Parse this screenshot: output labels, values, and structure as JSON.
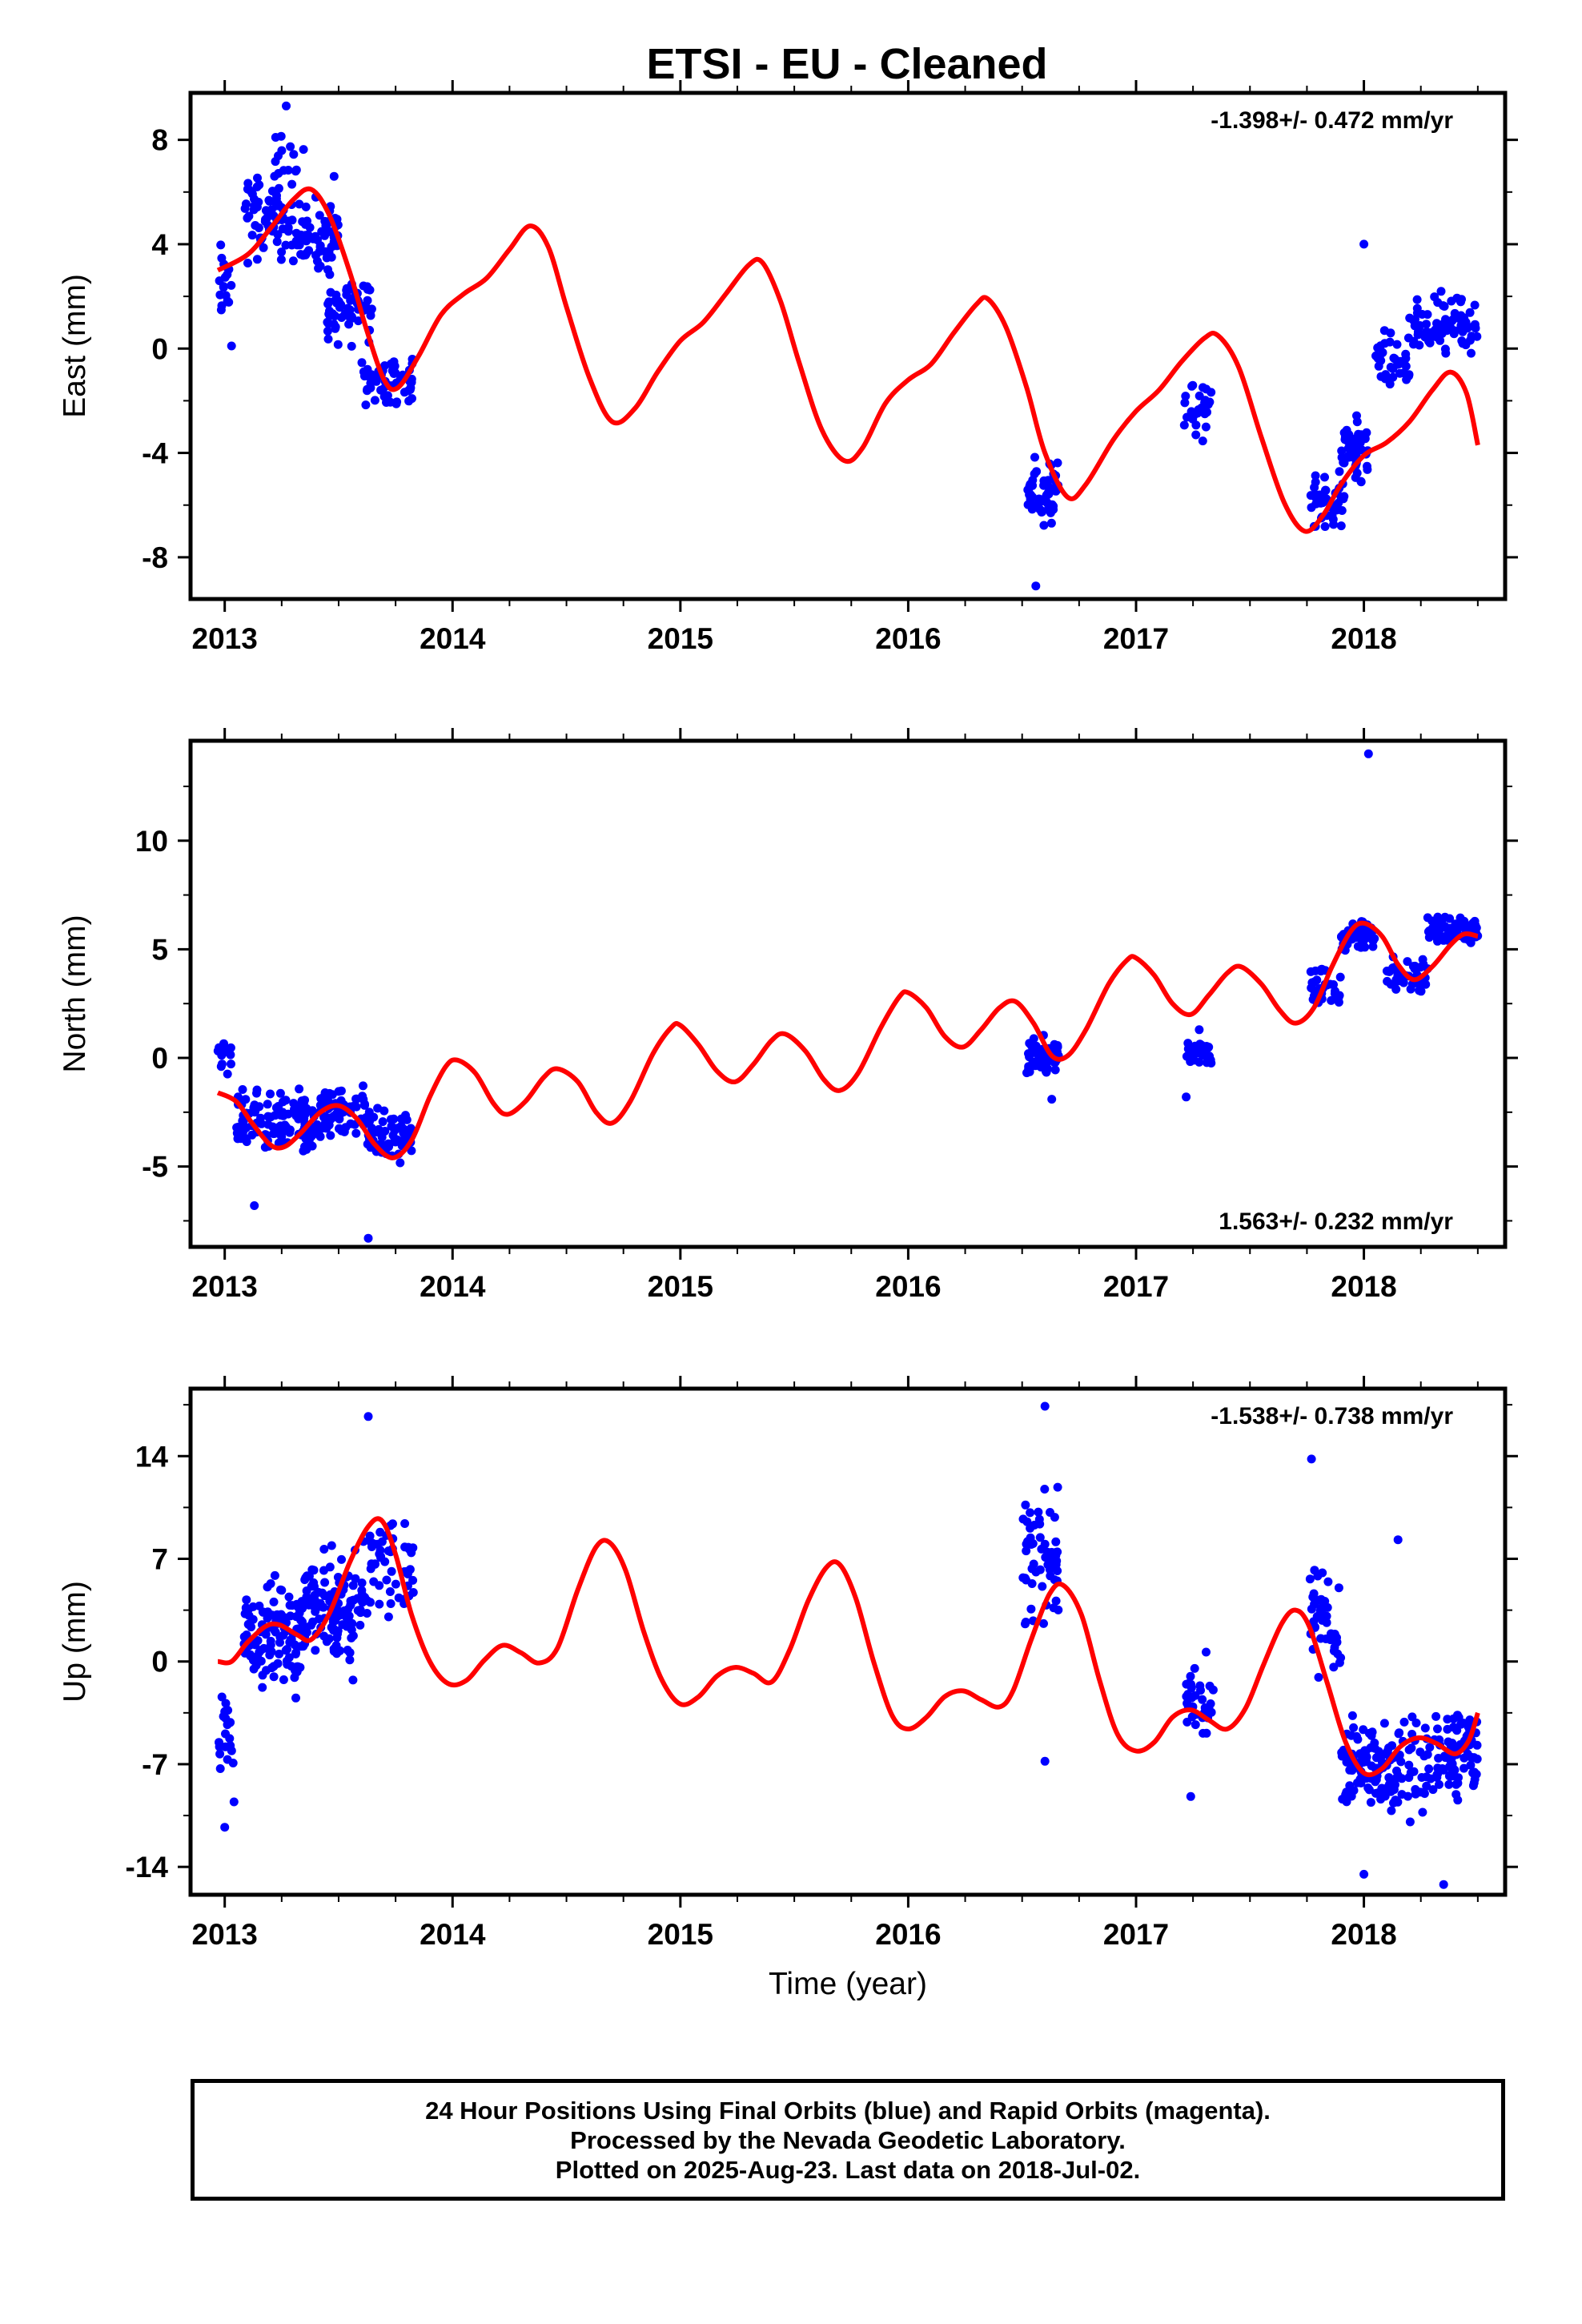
{
  "title": "ETSI  - EU - Cleaned",
  "footer": {
    "line1": "24 Hour Positions Using Final Orbits (blue) and Rapid Orbits (magenta).",
    "line2": "Processed by the Nevada Geodetic Laboratory.",
    "line3": "Plotted on 2025-Aug-23. Last data on 2018-Jul-02."
  },
  "colors": {
    "points": "#0000ff",
    "model": "#ff0000",
    "frame": "#000000"
  },
  "chart_data": [
    {
      "type": "scatter",
      "ylabel": "East (mm)",
      "xlabel": "",
      "xlim": [
        2012.85,
        2018.62
      ],
      "ylim": [
        -9.6,
        9.8
      ],
      "xticks": [
        "2013",
        "2014",
        "2015",
        "2016",
        "2017",
        "2018"
      ],
      "yticks": [
        "8",
        "4",
        "0",
        "-4",
        "-8"
      ],
      "ytick_values": [
        8,
        4,
        0,
        -4,
        -8
      ],
      "rate": "-1.398+/- 0.472 mm/yr",
      "rate_position": "top-right",
      "model_curve": [
        [
          2012.97,
          3.0
        ],
        [
          2013.1,
          3.6
        ],
        [
          2013.2,
          4.6
        ],
        [
          2013.3,
          5.7
        ],
        [
          2013.38,
          6.1
        ],
        [
          2013.46,
          5.1
        ],
        [
          2013.55,
          2.9
        ],
        [
          2013.62,
          0.8
        ],
        [
          2013.7,
          -1.2
        ],
        [
          2013.76,
          -1.5
        ],
        [
          2013.85,
          -0.3
        ],
        [
          2013.95,
          1.3
        ],
        [
          2014.05,
          2.1
        ],
        [
          2014.15,
          2.7
        ],
        [
          2014.25,
          3.8
        ],
        [
          2014.34,
          4.7
        ],
        [
          2014.42,
          3.9
        ],
        [
          2014.5,
          1.6
        ],
        [
          2014.6,
          -1.1
        ],
        [
          2014.7,
          -2.8
        ],
        [
          2014.8,
          -2.3
        ],
        [
          2014.9,
          -0.9
        ],
        [
          2015.0,
          0.3
        ],
        [
          2015.1,
          1.0
        ],
        [
          2015.2,
          2.1
        ],
        [
          2015.3,
          3.2
        ],
        [
          2015.36,
          3.3
        ],
        [
          2015.44,
          1.8
        ],
        [
          2015.52,
          -0.5
        ],
        [
          2015.62,
          -3.1
        ],
        [
          2015.72,
          -4.3
        ],
        [
          2015.8,
          -3.8
        ],
        [
          2015.9,
          -2.1
        ],
        [
          2016.0,
          -1.2
        ],
        [
          2016.1,
          -0.6
        ],
        [
          2016.2,
          0.6
        ],
        [
          2016.3,
          1.7
        ],
        [
          2016.35,
          1.9
        ],
        [
          2016.43,
          0.8
        ],
        [
          2016.52,
          -1.5
        ],
        [
          2016.6,
          -4.0
        ],
        [
          2016.7,
          -5.7
        ],
        [
          2016.78,
          -5.2
        ],
        [
          2016.9,
          -3.5
        ],
        [
          2017.0,
          -2.4
        ],
        [
          2017.1,
          -1.6
        ],
        [
          2017.2,
          -0.5
        ],
        [
          2017.3,
          0.4
        ],
        [
          2017.36,
          0.5
        ],
        [
          2017.45,
          -0.7
        ],
        [
          2017.55,
          -3.4
        ],
        [
          2017.65,
          -5.9
        ],
        [
          2017.74,
          -7.0
        ],
        [
          2017.82,
          -6.4
        ],
        [
          2017.9,
          -5.2
        ],
        [
          2018.0,
          -4.1
        ],
        [
          2018.1,
          -3.6
        ],
        [
          2018.2,
          -2.8
        ],
        [
          2018.3,
          -1.6
        ],
        [
          2018.38,
          -0.9
        ],
        [
          2018.45,
          -1.7
        ],
        [
          2018.5,
          -3.7
        ]
      ],
      "point_clusters": [
        {
          "x_from": 2012.97,
          "x_to": 2013.03,
          "y_center": 2.5,
          "y_spread": 2.2,
          "count": 18
        },
        {
          "x_from": 2013.08,
          "x_to": 2013.3,
          "y_center": 5.0,
          "y_spread": 2.3,
          "count": 70
        },
        {
          "x_from": 2013.22,
          "x_to": 2013.36,
          "y_center": 7.6,
          "y_spread": 1.2,
          "count": 12
        },
        {
          "x_from": 2013.3,
          "x_to": 2013.5,
          "y_center": 4.2,
          "y_spread": 2.0,
          "count": 65
        },
        {
          "x_from": 2013.45,
          "x_to": 2013.65,
          "y_center": 1.6,
          "y_spread": 1.8,
          "count": 60
        },
        {
          "x_from": 2013.6,
          "x_to": 2013.83,
          "y_center": -1.3,
          "y_spread": 1.4,
          "count": 60
        },
        {
          "x_from": 2016.52,
          "x_to": 2016.66,
          "y_center": -5.4,
          "y_spread": 1.6,
          "count": 55
        },
        {
          "x_from": 2017.2,
          "x_to": 2017.33,
          "y_center": -2.4,
          "y_spread": 1.5,
          "count": 30
        },
        {
          "x_from": 2017.76,
          "x_to": 2017.92,
          "y_center": -5.8,
          "y_spread": 1.4,
          "count": 45
        },
        {
          "x_from": 2017.9,
          "x_to": 2018.02,
          "y_center": -3.9,
          "y_spread": 1.7,
          "count": 45
        },
        {
          "x_from": 2018.05,
          "x_to": 2018.2,
          "y_center": -0.5,
          "y_spread": 1.6,
          "count": 35
        },
        {
          "x_from": 2018.2,
          "x_to": 2018.5,
          "y_center": 0.9,
          "y_spread": 1.5,
          "count": 80
        }
      ],
      "points": [
        [
          2013.03,
          0.1
        ],
        [
          2016.56,
          -9.1
        ],
        [
          2018.0,
          4.0
        ],
        [
          2013.27,
          9.3
        ],
        [
          2013.48,
          6.6
        ]
      ]
    },
    {
      "type": "scatter",
      "ylabel": "North (mm)",
      "xlabel": "",
      "xlim": [
        2012.85,
        2018.62
      ],
      "ylim": [
        -8.7,
        14.6
      ],
      "xticks": [
        "2013",
        "2014",
        "2015",
        "2016",
        "2017",
        "2018"
      ],
      "yticks": [
        "10",
        "5",
        "0",
        "-5"
      ],
      "ytick_values": [
        10,
        5,
        0,
        -5
      ],
      "rate": "1.563+/- 0.232 mm/yr",
      "rate_position": "bottom-right",
      "model_curve": [
        [
          2012.97,
          -1.6
        ],
        [
          2013.05,
          -2.0
        ],
        [
          2013.12,
          -3.0
        ],
        [
          2013.2,
          -4.0
        ],
        [
          2013.26,
          -4.1
        ],
        [
          2013.33,
          -3.5
        ],
        [
          2013.42,
          -2.5
        ],
        [
          2013.5,
          -2.2
        ],
        [
          2013.58,
          -2.8
        ],
        [
          2013.66,
          -4.0
        ],
        [
          2013.74,
          -4.6
        ],
        [
          2013.82,
          -3.8
        ],
        [
          2013.9,
          -1.8
        ],
        [
          2013.97,
          -0.4
        ],
        [
          2014.02,
          -0.1
        ],
        [
          2014.1,
          -0.7
        ],
        [
          2014.18,
          -2.1
        ],
        [
          2014.24,
          -2.6
        ],
        [
          2014.32,
          -2.0
        ],
        [
          2014.4,
          -0.9
        ],
        [
          2014.46,
          -0.5
        ],
        [
          2014.55,
          -1.1
        ],
        [
          2014.63,
          -2.5
        ],
        [
          2014.7,
          -3.0
        ],
        [
          2014.78,
          -2.0
        ],
        [
          2014.88,
          0.2
        ],
        [
          2014.96,
          1.4
        ],
        [
          2015.0,
          1.5
        ],
        [
          2015.08,
          0.6
        ],
        [
          2015.16,
          -0.6
        ],
        [
          2015.24,
          -1.1
        ],
        [
          2015.32,
          -0.3
        ],
        [
          2015.4,
          0.8
        ],
        [
          2015.46,
          1.1
        ],
        [
          2015.55,
          0.3
        ],
        [
          2015.63,
          -1.0
        ],
        [
          2015.7,
          -1.5
        ],
        [
          2015.78,
          -0.7
        ],
        [
          2015.88,
          1.4
        ],
        [
          2015.96,
          2.8
        ],
        [
          2016.0,
          3.0
        ],
        [
          2016.08,
          2.3
        ],
        [
          2016.16,
          1.0
        ],
        [
          2016.24,
          0.5
        ],
        [
          2016.32,
          1.3
        ],
        [
          2016.4,
          2.3
        ],
        [
          2016.47,
          2.6
        ],
        [
          2016.55,
          1.6
        ],
        [
          2016.63,
          0.1
        ],
        [
          2016.7,
          0.1
        ],
        [
          2016.78,
          1.3
        ],
        [
          2016.88,
          3.4
        ],
        [
          2016.96,
          4.5
        ],
        [
          2017.0,
          4.6
        ],
        [
          2017.08,
          3.8
        ],
        [
          2017.16,
          2.5
        ],
        [
          2017.24,
          2.0
        ],
        [
          2017.32,
          2.9
        ],
        [
          2017.4,
          3.9
        ],
        [
          2017.46,
          4.2
        ],
        [
          2017.55,
          3.4
        ],
        [
          2017.63,
          2.2
        ],
        [
          2017.7,
          1.6
        ],
        [
          2017.78,
          2.3
        ],
        [
          2017.86,
          4.2
        ],
        [
          2017.94,
          5.8
        ],
        [
          2018.0,
          6.2
        ],
        [
          2018.08,
          5.6
        ],
        [
          2018.15,
          4.3
        ],
        [
          2018.22,
          3.6
        ],
        [
          2018.3,
          4.2
        ],
        [
          2018.38,
          5.2
        ],
        [
          2018.44,
          5.7
        ],
        [
          2018.5,
          5.6
        ]
      ],
      "point_clusters": [
        {
          "x_from": 2012.97,
          "x_to": 2013.03,
          "y_center": 0.0,
          "y_spread": 1.2,
          "count": 14
        },
        {
          "x_from": 2013.05,
          "x_to": 2013.4,
          "y_center": -3.1,
          "y_spread": 2.2,
          "count": 120
        },
        {
          "x_from": 2013.4,
          "x_to": 2013.62,
          "y_center": -2.5,
          "y_spread": 1.8,
          "count": 70
        },
        {
          "x_from": 2013.62,
          "x_to": 2013.83,
          "y_center": -3.6,
          "y_spread": 1.8,
          "count": 60
        },
        {
          "x_from": 2016.52,
          "x_to": 2016.66,
          "y_center": 0.0,
          "y_spread": 1.2,
          "count": 50
        },
        {
          "x_from": 2017.22,
          "x_to": 2017.33,
          "y_center": 0.2,
          "y_spread": 1.3,
          "count": 30
        },
        {
          "x_from": 2017.76,
          "x_to": 2017.9,
          "y_center": 3.3,
          "y_spread": 1.5,
          "count": 35
        },
        {
          "x_from": 2017.9,
          "x_to": 2018.05,
          "y_center": 5.6,
          "y_spread": 0.9,
          "count": 55
        },
        {
          "x_from": 2018.1,
          "x_to": 2018.28,
          "y_center": 3.8,
          "y_spread": 1.2,
          "count": 45
        },
        {
          "x_from": 2018.28,
          "x_to": 2018.5,
          "y_center": 6.0,
          "y_spread": 1.1,
          "count": 70
        }
      ],
      "points": [
        [
          2018.02,
          14.0
        ],
        [
          2013.63,
          -8.3
        ],
        [
          2013.13,
          -6.8
        ],
        [
          2017.22,
          -1.8
        ],
        [
          2016.63,
          -1.9
        ]
      ]
    },
    {
      "type": "scatter",
      "ylabel": "Up (mm)",
      "xlabel": "Time (year)",
      "xlim": [
        2012.85,
        2018.62
      ],
      "ylim": [
        -15.9,
        18.6
      ],
      "xticks": [
        "2013",
        "2014",
        "2015",
        "2016",
        "2017",
        "2018"
      ],
      "yticks": [
        "14",
        "7",
        "0",
        "-7",
        "-14"
      ],
      "ytick_values": [
        14,
        7,
        0,
        -7,
        -14
      ],
      "rate": "-1.538+/- 0.738 mm/yr",
      "rate_position": "top-right",
      "model_curve": [
        [
          2012.97,
          0.0
        ],
        [
          2013.03,
          0.0
        ],
        [
          2013.1,
          1.3
        ],
        [
          2013.18,
          2.4
        ],
        [
          2013.24,
          2.5
        ],
        [
          2013.32,
          1.8
        ],
        [
          2013.38,
          1.5
        ],
        [
          2013.46,
          3.3
        ],
        [
          2013.55,
          6.8
        ],
        [
          2013.63,
          9.2
        ],
        [
          2013.69,
          9.6
        ],
        [
          2013.75,
          7.3
        ],
        [
          2013.82,
          3.2
        ],
        [
          2013.9,
          0.0
        ],
        [
          2013.98,
          -1.5
        ],
        [
          2014.06,
          -1.3
        ],
        [
          2014.14,
          0.1
        ],
        [
          2014.22,
          1.1
        ],
        [
          2014.3,
          0.6
        ],
        [
          2014.38,
          -0.1
        ],
        [
          2014.46,
          0.9
        ],
        [
          2014.55,
          4.9
        ],
        [
          2014.63,
          7.8
        ],
        [
          2014.69,
          8.1
        ],
        [
          2014.76,
          6.2
        ],
        [
          2014.84,
          2.0
        ],
        [
          2014.92,
          -1.3
        ],
        [
          2015.0,
          -2.9
        ],
        [
          2015.08,
          -2.4
        ],
        [
          2015.16,
          -1.0
        ],
        [
          2015.24,
          -0.4
        ],
        [
          2015.32,
          -0.8
        ],
        [
          2015.4,
          -1.4
        ],
        [
          2015.48,
          0.8
        ],
        [
          2015.56,
          4.1
        ],
        [
          2015.64,
          6.4
        ],
        [
          2015.7,
          6.6
        ],
        [
          2015.77,
          4.3
        ],
        [
          2015.85,
          -0.1
        ],
        [
          2015.93,
          -3.7
        ],
        [
          2016.0,
          -4.6
        ],
        [
          2016.08,
          -3.8
        ],
        [
          2016.16,
          -2.4
        ],
        [
          2016.24,
          -2.0
        ],
        [
          2016.32,
          -2.6
        ],
        [
          2016.4,
          -3.1
        ],
        [
          2016.46,
          -2.0
        ],
        [
          2016.54,
          1.5
        ],
        [
          2016.62,
          4.6
        ],
        [
          2016.68,
          5.2
        ],
        [
          2016.76,
          3.2
        ],
        [
          2016.84,
          -1.3
        ],
        [
          2016.92,
          -5.0
        ],
        [
          2017.0,
          -6.1
        ],
        [
          2017.08,
          -5.5
        ],
        [
          2017.16,
          -3.8
        ],
        [
          2017.24,
          -3.3
        ],
        [
          2017.32,
          -4.0
        ],
        [
          2017.4,
          -4.6
        ],
        [
          2017.48,
          -3.2
        ],
        [
          2017.56,
          -0.2
        ],
        [
          2017.64,
          2.6
        ],
        [
          2017.7,
          3.5
        ],
        [
          2017.76,
          2.4
        ],
        [
          2017.84,
          -1.5
        ],
        [
          2017.92,
          -5.5
        ],
        [
          2018.0,
          -7.6
        ],
        [
          2018.08,
          -7.3
        ],
        [
          2018.16,
          -5.8
        ],
        [
          2018.24,
          -5.2
        ],
        [
          2018.32,
          -5.6
        ],
        [
          2018.4,
          -6.3
        ],
        [
          2018.46,
          -5.4
        ],
        [
          2018.5,
          -3.5
        ]
      ],
      "point_clusters": [
        {
          "x_from": 2012.97,
          "x_to": 2013.05,
          "y_center": -6.0,
          "y_spread": 5.0,
          "count": 20
        },
        {
          "x_from": 2013.08,
          "x_to": 2013.35,
          "y_center": 1.8,
          "y_spread": 5.5,
          "count": 120
        },
        {
          "x_from": 2013.35,
          "x_to": 2013.6,
          "y_center": 3.5,
          "y_spread": 5.5,
          "count": 110
        },
        {
          "x_from": 2013.6,
          "x_to": 2013.83,
          "y_center": 6.5,
          "y_spread": 5.5,
          "count": 60
        },
        {
          "x_from": 2016.5,
          "x_to": 2016.66,
          "y_center": 7.0,
          "y_spread": 6.0,
          "count": 60
        },
        {
          "x_from": 2017.22,
          "x_to": 2017.34,
          "y_center": -2.5,
          "y_spread": 4.0,
          "count": 35
        },
        {
          "x_from": 2017.76,
          "x_to": 2017.9,
          "y_center": 2.5,
          "y_spread": 5.0,
          "count": 45
        },
        {
          "x_from": 2017.9,
          "x_to": 2018.05,
          "y_center": -7.0,
          "y_spread": 4.5,
          "count": 60
        },
        {
          "x_from": 2018.05,
          "x_to": 2018.3,
          "y_center": -7.0,
          "y_spread": 4.5,
          "count": 80
        },
        {
          "x_from": 2018.3,
          "x_to": 2018.5,
          "y_center": -6.0,
          "y_spread": 4.5,
          "count": 80
        }
      ],
      "points": [
        [
          2016.6,
          17.4
        ],
        [
          2013.63,
          16.7
        ],
        [
          2017.77,
          13.8
        ],
        [
          2018.15,
          8.3
        ],
        [
          2016.6,
          -6.8
        ],
        [
          2018.35,
          -15.2
        ],
        [
          2018.0,
          -14.5
        ],
        [
          2013.0,
          -11.3
        ],
        [
          2017.24,
          -9.2
        ]
      ]
    }
  ]
}
